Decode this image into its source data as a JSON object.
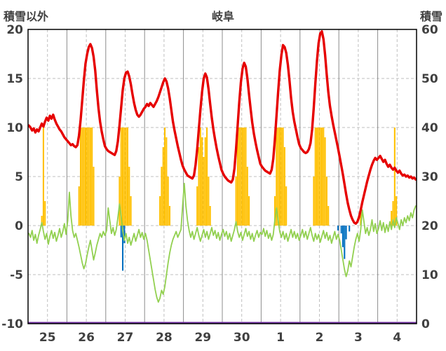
{
  "header": {
    "left_axis_title": "積雪以外",
    "title": "岐阜",
    "right_axis_title": "積雪"
  },
  "chart_data": {
    "type": "combo",
    "title": "岐阜",
    "left_axis_label": "積雪以外",
    "right_axis_label": "積雪",
    "x_categories": [
      "25",
      "26",
      "27",
      "28",
      "29",
      "30",
      "1",
      "2",
      "3",
      "4"
    ],
    "hours_per_day": 24,
    "left_axis": {
      "range": [
        -10,
        20
      ],
      "ticks": [
        -10,
        -5,
        0,
        5,
        10,
        15,
        20
      ]
    },
    "right_axis": {
      "range": [
        0,
        60
      ],
      "ticks": [
        0,
        10,
        20,
        30,
        40,
        50,
        60
      ]
    },
    "grid": true,
    "legend": false,
    "grid_color": "#bfbfbf",
    "day_grid_color": "#8c8c8c",
    "series": [
      {
        "id": "orange-bars",
        "type": "bar",
        "axis": "left",
        "color": "#ffc000",
        "points": [
          [
            8,
            1
          ],
          [
            9,
            10
          ],
          [
            10,
            2.5
          ],
          [
            31,
            4
          ],
          [
            32,
            10
          ],
          [
            33,
            10
          ],
          [
            34,
            10
          ],
          [
            35,
            10
          ],
          [
            36,
            10
          ],
          [
            37,
            10
          ],
          [
            38,
            10
          ],
          [
            39,
            10
          ],
          [
            40,
            6
          ],
          [
            56,
            5
          ],
          [
            57,
            10
          ],
          [
            58,
            10
          ],
          [
            59,
            10
          ],
          [
            60,
            10
          ],
          [
            61,
            10
          ],
          [
            62,
            6
          ],
          [
            63,
            3
          ],
          [
            81,
            3
          ],
          [
            82,
            6
          ],
          [
            83,
            8
          ],
          [
            84,
            10
          ],
          [
            85,
            9
          ],
          [
            86,
            5
          ],
          [
            87,
            2
          ],
          [
            104,
            4
          ],
          [
            105,
            8
          ],
          [
            106,
            10
          ],
          [
            107,
            9
          ],
          [
            108,
            7
          ],
          [
            109,
            9
          ],
          [
            110,
            10
          ],
          [
            111,
            5
          ],
          [
            112,
            2
          ],
          [
            128,
            5
          ],
          [
            129,
            10
          ],
          [
            130,
            10
          ],
          [
            131,
            10
          ],
          [
            132,
            10
          ],
          [
            133,
            10
          ],
          [
            134,
            10
          ],
          [
            135,
            6
          ],
          [
            136,
            3
          ],
          [
            152,
            3
          ],
          [
            153,
            10
          ],
          [
            154,
            10
          ],
          [
            155,
            10
          ],
          [
            156,
            10
          ],
          [
            157,
            10
          ],
          [
            158,
            8
          ],
          [
            159,
            4
          ],
          [
            176,
            5
          ],
          [
            177,
            10
          ],
          [
            178,
            10
          ],
          [
            179,
            10
          ],
          [
            180,
            10
          ],
          [
            181,
            10
          ],
          [
            182,
            10
          ],
          [
            183,
            9
          ],
          [
            184,
            5
          ],
          [
            185,
            2
          ],
          [
            205,
            1.5
          ],
          [
            224,
            1.5
          ],
          [
            225,
            2.5
          ],
          [
            226,
            10
          ],
          [
            227,
            3
          ]
        ]
      },
      {
        "id": "blue-bars",
        "type": "bar",
        "axis": "left",
        "color": "#0070c0",
        "points": [
          [
            57,
            -1.2
          ],
          [
            58,
            -4.6
          ],
          [
            59,
            -1.8
          ],
          [
            191,
            -0.5
          ],
          [
            193,
            -0.8
          ],
          [
            194,
            -2.2
          ],
          [
            195,
            -3.4
          ],
          [
            196,
            -1.4
          ],
          [
            198,
            -0.6
          ]
        ]
      },
      {
        "id": "green-line",
        "type": "line",
        "axis": "left",
        "color": "#92d050",
        "width": 1.8,
        "values": [
          -0.8,
          -1.2,
          -0.5,
          -1.5,
          -0.9,
          -1.8,
          -1.0,
          -0.4,
          0.3,
          -0.6,
          -1.4,
          -0.8,
          -1.9,
          -1.1,
          -0.5,
          -1.3,
          -0.7,
          -1.6,
          -1.0,
          -0.3,
          -1.2,
          -0.6,
          0.2,
          -0.9,
          0.5,
          3.4,
          1.0,
          -0.5,
          -1.2,
          -0.8,
          -1.5,
          -2.2,
          -3.0,
          -3.8,
          -4.4,
          -3.9,
          -3.0,
          -2.2,
          -1.5,
          -2.5,
          -3.5,
          -2.8,
          -2.0,
          -1.4,
          -0.8,
          -1.2,
          -0.6,
          -1.0,
          -0.5,
          1.8,
          0.5,
          -0.8,
          -0.2,
          -1.0,
          -0.4,
          0.8,
          2.2,
          1.0,
          -0.5,
          -1.5,
          -0.8,
          -1.8,
          -1.2,
          -2.0,
          -1.4,
          -0.8,
          -1.6,
          -1.0,
          -0.4,
          -1.2,
          -0.7,
          -1.4,
          -0.8,
          -1.5,
          -2.5,
          -3.5,
          -4.5,
          -5.5,
          -6.5,
          -7.3,
          -7.8,
          -7.4,
          -6.6,
          -7.0,
          -6.2,
          -5.0,
          -3.8,
          -2.8,
          -2.0,
          -1.4,
          -1.0,
          -0.6,
          -1.2,
          -0.8,
          -0.4,
          2.0,
          4.3,
          2.0,
          0.5,
          -0.5,
          -1.2,
          -0.6,
          -1.4,
          -0.8,
          -0.2,
          -1.0,
          -1.6,
          -1.0,
          -0.4,
          -1.2,
          -0.6,
          -1.4,
          -0.8,
          -0.2,
          -1.0,
          -0.5,
          -1.3,
          -0.7,
          -1.5,
          -0.9,
          -0.4,
          -1.1,
          -0.6,
          -1.4,
          -0.8,
          -1.6,
          -1.0,
          -0.4,
          0.4,
          -0.6,
          -1.2,
          -0.7,
          -1.5,
          -0.9,
          -0.3,
          -1.1,
          -0.6,
          -1.4,
          -0.8,
          -1.6,
          -1.0,
          -0.5,
          -1.2,
          -0.7,
          -0.9,
          -0.3,
          -1.1,
          -0.5,
          -1.3,
          -0.8,
          -1.5,
          -0.9,
          0.6,
          1.8,
          0.6,
          -0.6,
          -1.2,
          -0.6,
          -1.4,
          -0.8,
          -1.6,
          -1.0,
          -0.4,
          -1.2,
          -0.6,
          -1.3,
          -0.8,
          -1.5,
          -1.0,
          -0.4,
          -1.2,
          -0.6,
          -1.4,
          -0.8,
          -0.2,
          -1.0,
          -1.6,
          -0.8,
          -1.4,
          -0.9,
          -1.7,
          -1.1,
          -0.5,
          -1.3,
          -0.7,
          -1.5,
          -1.0,
          -1.8,
          -1.2,
          -0.6,
          -1.4,
          -0.9,
          -1.5,
          -2.5,
          -3.5,
          -4.5,
          -5.2,
          -4.6,
          -3.6,
          -4.2,
          -3.2,
          -2.2,
          -1.4,
          -0.8,
          -1.6,
          -0.4,
          1.6,
          0.4,
          -0.8,
          -0.2,
          -1.0,
          -0.4,
          0.6,
          -0.6,
          0.2,
          -0.8,
          -0.3,
          0.5,
          -0.5,
          0.3,
          -0.7,
          0.1,
          -0.6,
          0.4,
          -0.4,
          0.6,
          -0.2,
          0.8,
          0.2,
          -0.4,
          0.6,
          0.0,
          0.8,
          0.3,
          1.0,
          0.5,
          1.3,
          0.8,
          1.6,
          2.0
        ]
      },
      {
        "id": "red-line",
        "type": "line",
        "axis": "left",
        "color": "#e60000",
        "width": 3.4,
        "values": [
          10.2,
          10.0,
          9.7,
          9.9,
          9.5,
          9.8,
          9.6,
          10.0,
          10.4,
          10.1,
          10.6,
          11.0,
          10.7,
          11.2,
          10.9,
          11.3,
          10.8,
          10.4,
          10.1,
          9.8,
          9.6,
          9.3,
          9.0,
          8.8,
          8.6,
          8.4,
          8.2,
          8.3,
          8.1,
          8.0,
          8.2,
          9.2,
          10.8,
          12.8,
          14.8,
          16.5,
          17.5,
          18.2,
          18.5,
          18.1,
          17.2,
          15.8,
          13.8,
          12.0,
          10.6,
          9.6,
          8.8,
          8.1,
          7.8,
          7.6,
          7.5,
          7.4,
          7.3,
          7.2,
          7.6,
          8.6,
          10.2,
          12.0,
          13.8,
          15.0,
          15.6,
          15.7,
          15.2,
          14.4,
          13.4,
          12.5,
          11.8,
          11.3,
          11.1,
          11.3,
          11.6,
          11.9,
          12.1,
          12.4,
          12.2,
          12.5,
          12.3,
          12.1,
          12.4,
          12.7,
          13.1,
          13.6,
          14.1,
          14.6,
          15.0,
          14.7,
          14.0,
          13.0,
          11.8,
          10.6,
          9.7,
          8.9,
          8.1,
          7.4,
          6.7,
          6.1,
          5.7,
          5.4,
          5.1,
          5.0,
          4.9,
          4.8,
          5.1,
          6.2,
          7.8,
          9.8,
          11.8,
          13.6,
          15.0,
          15.5,
          15.1,
          13.9,
          12.4,
          11.0,
          9.8,
          8.8,
          7.9,
          7.1,
          6.4,
          5.7,
          5.3,
          5.0,
          4.8,
          4.6,
          4.5,
          4.4,
          4.7,
          5.8,
          7.8,
          10.2,
          12.6,
          14.6,
          16.0,
          16.6,
          16.2,
          15.0,
          13.4,
          11.9,
          10.5,
          9.4,
          8.5,
          7.7,
          7.0,
          6.3,
          6.0,
          5.8,
          5.6,
          5.5,
          5.4,
          5.3,
          5.7,
          6.8,
          8.8,
          11.2,
          13.6,
          15.8,
          17.4,
          18.4,
          18.2,
          17.6,
          16.4,
          14.8,
          13.0,
          11.6,
          10.6,
          9.8,
          9.0,
          8.3,
          7.9,
          7.7,
          7.5,
          7.4,
          7.5,
          7.8,
          8.4,
          9.8,
          12.0,
          14.5,
          16.8,
          18.6,
          19.6,
          19.8,
          19.0,
          17.4,
          15.4,
          13.6,
          12.2,
          11.2,
          10.3,
          9.5,
          8.7,
          7.9,
          7.0,
          6.1,
          5.2,
          4.2,
          3.2,
          2.3,
          1.6,
          1.0,
          0.6,
          0.3,
          0.2,
          0.4,
          0.9,
          1.6,
          2.4,
          3.1,
          3.8,
          4.5,
          5.1,
          5.7,
          6.2,
          6.6,
          6.9,
          6.7,
          6.9,
          7.1,
          6.8,
          6.5,
          6.7,
          6.3,
          6.0,
          6.2,
          5.9,
          5.7,
          5.9,
          5.6,
          5.4,
          5.6,
          5.3,
          5.1,
          5.2,
          5.0,
          5.1,
          4.9,
          5.0,
          4.8,
          4.9,
          4.7
        ]
      },
      {
        "id": "purple-line",
        "type": "constant-line",
        "axis": "right",
        "color": "#7030a0",
        "width": 2.5,
        "value": 0
      }
    ]
  }
}
